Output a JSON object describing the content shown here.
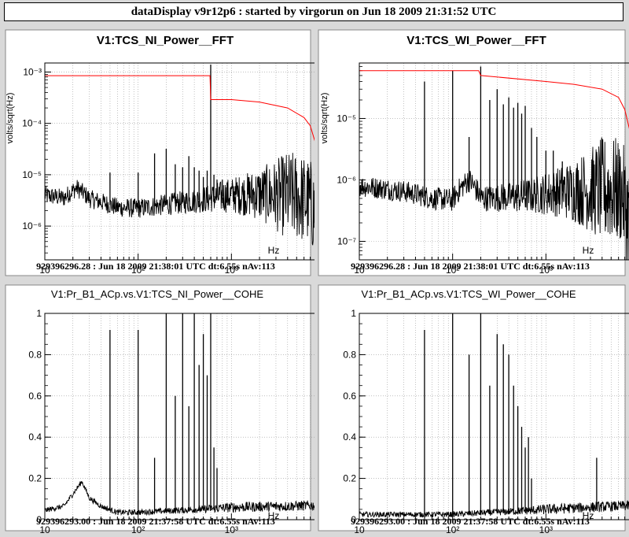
{
  "header": {
    "title": "dataDisplay v9r12p6 : started by virgorun on Jun 18 2009 21:31:52 UTC"
  },
  "colors": {
    "background": "#d9d9d9",
    "plot_bg": "#ffffff",
    "trace": "#000000",
    "reference": "#ff0000",
    "grid": "#9a9a9a"
  },
  "chart_data": [
    {
      "id": "nw",
      "type": "line",
      "title": "V1:TCS_NI_Power__FFT",
      "ylabel": "volts/sqrt(Hz)",
      "xlabel": "Hz",
      "xscale": "log",
      "yscale": "log",
      "xlim": [
        10,
        10000
      ],
      "ylim": [
        2.2e-07,
        0.0015
      ],
      "grid": true,
      "x_ticks": [
        {
          "v": 10,
          "label": "10"
        },
        {
          "v": 100,
          "label": "10²"
        },
        {
          "v": 1000,
          "label": "10³"
        }
      ],
      "y_ticks": [
        {
          "v": 1e-06,
          "label": "10⁻⁶"
        },
        {
          "v": 1e-05,
          "label": "10⁻⁵"
        },
        {
          "v": 0.0001,
          "label": "10⁻⁴"
        },
        {
          "v": 0.001,
          "label": "10⁻³"
        }
      ],
      "footer": "929396296.28 : Jun 18 2009 21:38:01 UTC dt:6.55s nAv:113",
      "series": [
        {
          "role": "spectrum",
          "baseline": [
            [
              10,
              4e-06
            ],
            [
              16,
              3.5e-06
            ],
            [
              22,
              5.5e-06
            ],
            [
              30,
              3.4e-06
            ],
            [
              60,
              2.3e-06
            ],
            [
              100,
              2.2e-06
            ],
            [
              200,
              2.6e-06
            ],
            [
              500,
              3.3e-06
            ],
            [
              1000,
              4e-06
            ],
            [
              2000,
              4.2e-06
            ],
            [
              5000,
              3.8e-06
            ],
            [
              7000,
              2.8e-06
            ],
            [
              8500,
              1.3e-06
            ],
            [
              10000,
              3.5e-07
            ]
          ],
          "peaks": [
            [
              50,
              1.1e-05
            ],
            [
              100,
              1.1e-05
            ],
            [
              150,
              2.6e-05
            ],
            [
              200,
              3.2e-05
            ],
            [
              250,
              1.6e-05
            ],
            [
              300,
              1.4e-05
            ],
            [
              350,
              2.3e-05
            ],
            [
              400,
              1.4e-05
            ],
            [
              450,
              1.2e-05
            ],
            [
              500,
              9e-06
            ],
            [
              550,
              1.2e-05
            ],
            [
              600,
              0.0014
            ],
            [
              650,
              1e-05
            ],
            [
              700,
              8e-06
            ],
            [
              800,
              8e-06
            ],
            [
              900,
              7e-06
            ],
            [
              1100,
              6e-06
            ],
            [
              1300,
              6e-06
            ],
            [
              1500,
              6e-06
            ]
          ]
        },
        {
          "role": "reference",
          "points": [
            [
              10,
              0.00085
            ],
            [
              590,
              0.00085
            ],
            [
              600,
              0.00029
            ],
            [
              1000,
              0.00029
            ],
            [
              2000,
              0.00026
            ],
            [
              4000,
              0.0002
            ],
            [
              6000,
              0.00013
            ],
            [
              7000,
              9e-05
            ],
            [
              8000,
              4e-05
            ],
            [
              9000,
              1.2e-05
            ],
            [
              10000,
              2.5e-07
            ]
          ]
        }
      ]
    },
    {
      "id": "ne",
      "type": "line",
      "title": "V1:TCS_WI_Power__FFT",
      "ylabel": "volts/sqrt(Hz)",
      "xlabel": "Hz",
      "xscale": "log",
      "yscale": "log",
      "xlim": [
        10,
        10000
      ],
      "ylim": [
        5e-08,
        8e-05
      ],
      "grid": true,
      "x_ticks": [
        {
          "v": 10,
          "label": "10"
        },
        {
          "v": 100,
          "label": "10²"
        },
        {
          "v": 1000,
          "label": "10³"
        }
      ],
      "y_ticks": [
        {
          "v": 1e-07,
          "label": "10⁻⁷"
        },
        {
          "v": 1e-06,
          "label": "10⁻⁶"
        },
        {
          "v": 1e-05,
          "label": "10⁻⁵"
        }
      ],
      "footer": "929396296.28 : Jun 18 2009 21:38:01 UTC dt:6.55s nAv:113",
      "series": [
        {
          "role": "spectrum",
          "baseline": [
            [
              10,
              8e-07
            ],
            [
              30,
              6.5e-07
            ],
            [
              60,
              5e-07
            ],
            [
              100,
              4.7e-07
            ],
            [
              150,
              1e-06
            ],
            [
              200,
              5e-07
            ],
            [
              500,
              5.3e-07
            ],
            [
              1000,
              6e-07
            ],
            [
              2000,
              6.8e-07
            ],
            [
              5000,
              6.8e-07
            ],
            [
              6500,
              6.5e-07
            ],
            [
              7000,
              4e-07
            ],
            [
              8500,
              1.4e-07
            ],
            [
              10000,
              9e-08
            ]
          ],
          "peaks": [
            [
              50,
              4e-05
            ],
            [
              100,
              6e-05
            ],
            [
              150,
              5e-06
            ],
            [
              200,
              7e-05
            ],
            [
              250,
              2e-05
            ],
            [
              300,
              3e-05
            ],
            [
              350,
              1.7e-05
            ],
            [
              400,
              2.2e-05
            ],
            [
              450,
              1.5e-05
            ],
            [
              500,
              1.8e-05
            ],
            [
              550,
              1.2e-05
            ],
            [
              600,
              1.6e-05
            ],
            [
              700,
              7e-06
            ],
            [
              800,
              5e-06
            ],
            [
              1000,
              3e-06
            ],
            [
              1200,
              3e-06
            ],
            [
              1500,
              2e-06
            ]
          ]
        },
        {
          "role": "reference",
          "points": [
            [
              10,
              6e-05
            ],
            [
              190,
              6e-05
            ],
            [
              200,
              5e-05
            ],
            [
              1000,
              4e-05
            ],
            [
              2000,
              3.6e-05
            ],
            [
              4000,
              3e-05
            ],
            [
              6000,
              2.2e-05
            ],
            [
              7000,
              1.4e-05
            ],
            [
              8000,
              6e-06
            ],
            [
              9000,
              1e-06
            ],
            [
              10000,
              7e-08
            ]
          ]
        }
      ]
    },
    {
      "id": "sw",
      "type": "line",
      "title": "V1:Pr_B1_ACp.vs.V1:TCS_NI_Power__COHE",
      "xlabel": "Hz",
      "xscale": "log",
      "yscale": "linear",
      "xlim": [
        10,
        10000
      ],
      "ylim": [
        0,
        1
      ],
      "grid": true,
      "x_ticks": [
        {
          "v": 10,
          "label": "10"
        },
        {
          "v": 100,
          "label": "10²"
        },
        {
          "v": 1000,
          "label": "10³"
        }
      ],
      "y_ticks": [
        {
          "v": 0,
          "label": "0"
        },
        {
          "v": 0.2,
          "label": "0.2"
        },
        {
          "v": 0.4,
          "label": "0.4"
        },
        {
          "v": 0.6,
          "label": "0.6"
        },
        {
          "v": 0.8,
          "label": "0.8"
        },
        {
          "v": 1,
          "label": "1"
        }
      ],
      "footer": "929396293.00 : Jun 18 2009 21:37:58 UTC dt:6.55s nAv:113",
      "series": [
        {
          "role": "coherence",
          "baseline": [
            [
              10,
              0.04
            ],
            [
              16,
              0.06
            ],
            [
              20,
              0.12
            ],
            [
              25,
              0.18
            ],
            [
              30,
              0.1
            ],
            [
              40,
              0.06
            ],
            [
              60,
              0.03
            ],
            [
              100,
              0.03
            ],
            [
              300,
              0.04
            ],
            [
              1000,
              0.05
            ],
            [
              10000,
              0.06
            ]
          ],
          "peaks": [
            [
              50,
              0.92
            ],
            [
              100,
              0.92
            ],
            [
              150,
              0.3
            ],
            [
              200,
              1.0
            ],
            [
              250,
              0.6
            ],
            [
              300,
              1.0
            ],
            [
              350,
              0.55
            ],
            [
              400,
              1.0
            ],
            [
              450,
              0.75
            ],
            [
              500,
              0.9
            ],
            [
              550,
              0.7
            ],
            [
              600,
              1.0
            ],
            [
              650,
              0.35
            ],
            [
              700,
              0.25
            ]
          ]
        }
      ]
    },
    {
      "id": "se",
      "type": "line",
      "title": "V1:Pr_B1_ACp.vs.V1:TCS_WI_Power__COHE",
      "xlabel": "Hz",
      "xscale": "log",
      "yscale": "linear",
      "xlim": [
        10,
        10000
      ],
      "ylim": [
        0,
        1
      ],
      "grid": true,
      "x_ticks": [
        {
          "v": 10,
          "label": "10"
        },
        {
          "v": 100,
          "label": "10²"
        },
        {
          "v": 1000,
          "label": "10³"
        }
      ],
      "y_ticks": [
        {
          "v": 0,
          "label": "0"
        },
        {
          "v": 0.2,
          "label": "0.2"
        },
        {
          "v": 0.4,
          "label": "0.4"
        },
        {
          "v": 0.6,
          "label": "0.6"
        },
        {
          "v": 0.8,
          "label": "0.8"
        },
        {
          "v": 1,
          "label": "1"
        }
      ],
      "footer": "929396293.00 : Jun 18 2009 21:37:58 UTC dt:6.55s nAv:113",
      "series": [
        {
          "role": "coherence",
          "baseline": [
            [
              10,
              0.02
            ],
            [
              100,
              0.02
            ],
            [
              300,
              0.03
            ],
            [
              1000,
              0.04
            ],
            [
              3000,
              0.05
            ],
            [
              10000,
              0.06
            ]
          ],
          "peaks": [
            [
              50,
              0.92
            ],
            [
              100,
              1.0
            ],
            [
              150,
              0.8
            ],
            [
              200,
              1.0
            ],
            [
              250,
              0.65
            ],
            [
              300,
              0.9
            ],
            [
              350,
              0.85
            ],
            [
              400,
              0.8
            ],
            [
              450,
              0.65
            ],
            [
              500,
              0.55
            ],
            [
              550,
              0.45
            ],
            [
              600,
              0.35
            ],
            [
              650,
              0.4
            ],
            [
              700,
              0.2
            ],
            [
              3500,
              0.3
            ]
          ]
        }
      ]
    }
  ]
}
